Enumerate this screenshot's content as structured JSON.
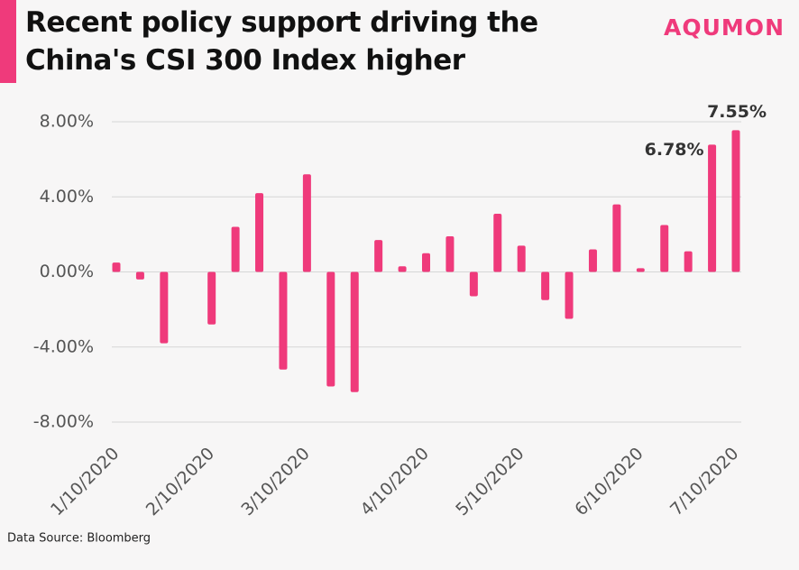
{
  "chart_data": {
    "type": "bar",
    "title": "Recent policy support driving the China's CSI 300 Index higher",
    "brand": "AQUMON",
    "source": "Data Source: Bloomberg",
    "color": "#ef3a7b",
    "grid": true,
    "categories": [
      "1/10/2020",
      null,
      null,
      null,
      "2/10/2020",
      null,
      null,
      null,
      "3/10/2020",
      null,
      null,
      null,
      null,
      "4/10/2020",
      null,
      null,
      null,
      "5/10/2020",
      null,
      null,
      null,
      null,
      "6/10/2020",
      null,
      null,
      null,
      "7/10/2020"
    ],
    "values": [
      0.5,
      -0.4,
      -3.8,
      null,
      -2.8,
      2.4,
      4.2,
      -5.2,
      5.2,
      -6.1,
      -6.4,
      1.7,
      0.3,
      1.0,
      1.9,
      -1.3,
      3.1,
      1.4,
      -1.5,
      -2.5,
      1.2,
      3.6,
      0.2,
      2.5,
      1.1,
      6.78,
      7.55
    ],
    "value_labels": [
      null,
      null,
      null,
      null,
      null,
      null,
      null,
      null,
      null,
      null,
      null,
      null,
      null,
      null,
      null,
      null,
      null,
      null,
      null,
      null,
      null,
      null,
      null,
      null,
      null,
      "6.78%",
      "7.55%"
    ],
    "ylim": [
      -8,
      8
    ],
    "yticks": [
      {
        "value": -8,
        "label": "-8.00%"
      },
      {
        "value": -4,
        "label": "-4.00%"
      },
      {
        "value": 0,
        "label": "0.00%"
      },
      {
        "value": 4,
        "label": "4.00%"
      },
      {
        "value": 8,
        "label": "8.00%"
      }
    ]
  }
}
